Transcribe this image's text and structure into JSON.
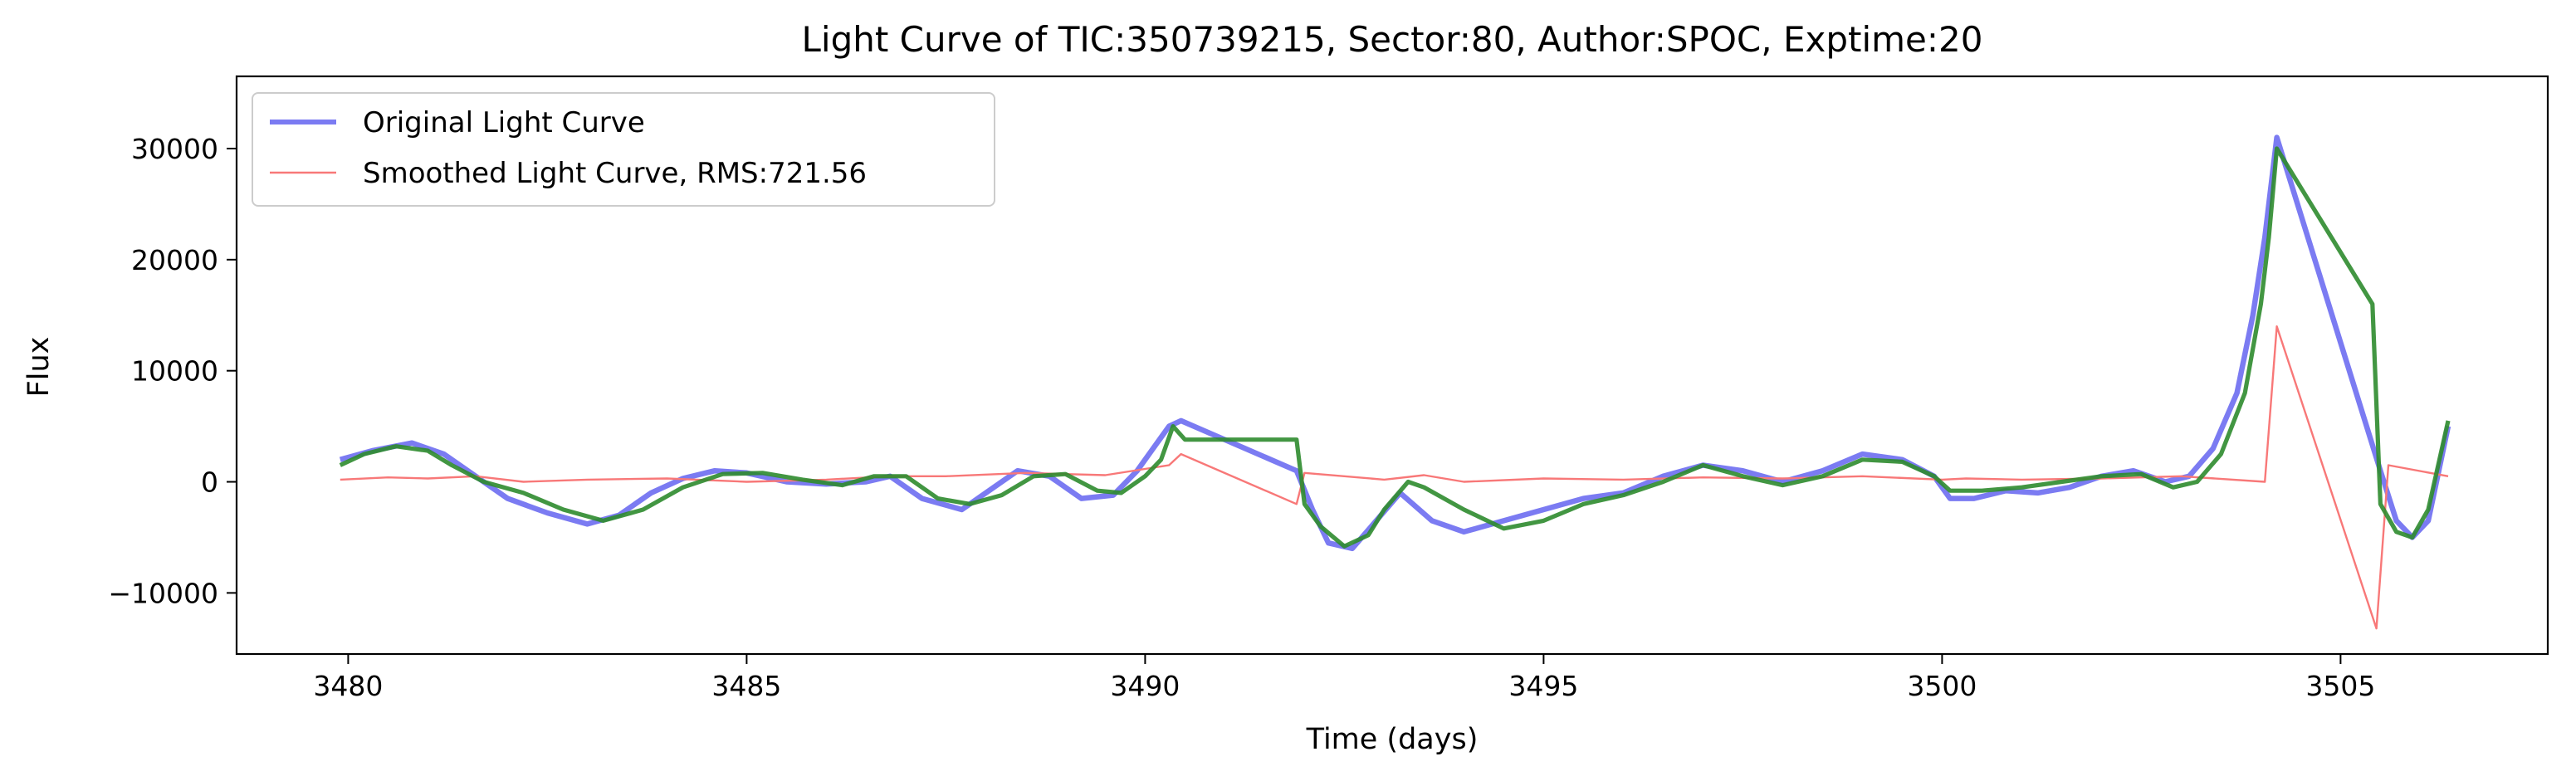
{
  "chart_data": {
    "type": "line",
    "title": "Light Curve of TIC:350739215, Sector:80, Author:SPOC, Exptime:20",
    "xlabel": "Time (days)",
    "ylabel": "Flux",
    "xlim": [
      3478.6,
      3507.6
    ],
    "ylim": [
      -15500,
      36500
    ],
    "x_ticks": [
      3480,
      3485,
      3490,
      3495,
      3500,
      3505
    ],
    "y_ticks": [
      -10000,
      0,
      10000,
      20000,
      30000
    ],
    "grid": false,
    "legend_position": "top-left",
    "series": [
      {
        "name": "Original Light Curve",
        "color": "#7b7bf2",
        "x": [
          3479.9,
          3480.3,
          3480.8,
          3481.2,
          3481.6,
          3482.0,
          3482.5,
          3483.0,
          3483.4,
          3483.8,
          3484.2,
          3484.6,
          3485.0,
          3485.5,
          3486.0,
          3486.5,
          3486.8,
          3487.2,
          3487.7,
          3488.0,
          3488.4,
          3488.8,
          3489.2,
          3489.6,
          3489.9,
          3490.1,
          3490.3,
          3490.45,
          3491.9,
          3492.1,
          3492.3,
          3492.6,
          3492.9,
          3493.2,
          3493.6,
          3494.0,
          3494.5,
          3495.0,
          3495.5,
          3496.0,
          3496.5,
          3497.0,
          3497.5,
          3498.0,
          3498.5,
          3499.0,
          3499.5,
          3499.9,
          3500.1,
          3500.4,
          3500.8,
          3501.2,
          3501.6,
          3502.0,
          3502.4,
          3502.8,
          3503.1,
          3503.4,
          3503.7,
          3503.9,
          3504.05,
          3504.2,
          3505.5,
          3505.7,
          3505.9,
          3506.1,
          3506.35
        ],
        "y": [
          2000,
          2800,
          3500,
          2500,
          500,
          -1500,
          -2800,
          -3800,
          -3000,
          -1000,
          300,
          1000,
          800,
          0,
          -200,
          0,
          500,
          -1500,
          -2500,
          -1000,
          1000,
          500,
          -1500,
          -1200,
          1000,
          3000,
          5000,
          5500,
          1000,
          -2500,
          -5500,
          -6000,
          -3500,
          -1000,
          -3500,
          -4500,
          -3500,
          -2500,
          -1500,
          -1000,
          500,
          1500,
          1000,
          0,
          1000,
          2500,
          2000,
          500,
          -1500,
          -1500,
          -800,
          -1000,
          -500,
          500,
          1000,
          0,
          500,
          3000,
          8000,
          15000,
          22000,
          31000,
          1000,
          -3500,
          -5000,
          -3500,
          5000
        ]
      },
      {
        "name": "Smoothed Light Curve, RMS:721.56",
        "color": "#f87878",
        "x": [
          3479.9,
          3480.5,
          3481.0,
          3481.6,
          3482.2,
          3483.0,
          3484.0,
          3485.0,
          3486.0,
          3486.8,
          3487.5,
          3488.5,
          3489.5,
          3490.3,
          3490.45,
          3491.9,
          3492.0,
          3493.0,
          3493.5,
          3494.0,
          3495.0,
          3496.0,
          3497.0,
          3498.0,
          3499.0,
          3500.0,
          3500.3,
          3501.0,
          3502.0,
          3503.0,
          3504.05,
          3504.2,
          3505.45,
          3505.6,
          3506.35
        ],
        "y": [
          200,
          400,
          300,
          500,
          0,
          200,
          300,
          0,
          200,
          500,
          500,
          800,
          600,
          1500,
          2500,
          -2000,
          800,
          200,
          600,
          0,
          300,
          200,
          400,
          300,
          500,
          200,
          300,
          200,
          300,
          500,
          0,
          14000,
          -13200,
          1500,
          500
        ]
      },
      {
        "name": "",
        "color": "#2e8b2e",
        "x": [
          3479.9,
          3480.2,
          3480.6,
          3481.0,
          3481.3,
          3481.7,
          3482.2,
          3482.7,
          3483.2,
          3483.7,
          3484.2,
          3484.7,
          3485.2,
          3485.7,
          3486.2,
          3486.6,
          3487.0,
          3487.4,
          3487.8,
          3488.2,
          3488.6,
          3489.0,
          3489.4,
          3489.7,
          3490.0,
          3490.2,
          3490.35,
          3490.5,
          3491.9,
          3492.0,
          3492.2,
          3492.5,
          3492.8,
          3493.0,
          3493.3,
          3493.5,
          3494.0,
          3494.5,
          3495.0,
          3495.5,
          3496.0,
          3496.5,
          3497.0,
          3497.5,
          3498.0,
          3498.5,
          3499.0,
          3499.5,
          3499.9,
          3500.1,
          3500.5,
          3501.0,
          3501.5,
          3502.0,
          3502.5,
          3502.9,
          3503.2,
          3503.5,
          3503.8,
          3504.0,
          3504.1,
          3504.2,
          3505.4,
          3505.5,
          3505.7,
          3505.9,
          3506.1,
          3506.35
        ],
        "y": [
          1500,
          2500,
          3200,
          2800,
          1500,
          0,
          -1000,
          -2500,
          -3500,
          -2500,
          -500,
          700,
          800,
          200,
          -300,
          500,
          500,
          -1500,
          -2000,
          -1200,
          500,
          700,
          -800,
          -1000,
          500,
          2000,
          5000,
          3800,
          3800,
          -2000,
          -4000,
          -5800,
          -4800,
          -2500,
          0,
          -500,
          -2500,
          -4200,
          -3500,
          -2000,
          -1200,
          0,
          1500,
          500,
          -300,
          500,
          2000,
          1800,
          500,
          -800,
          -800,
          -500,
          0,
          500,
          700,
          -500,
          0,
          2500,
          8000,
          16000,
          22000,
          30000,
          16000,
          -2000,
          -4500,
          -5000,
          -2500,
          5500
        ]
      }
    ],
    "legend": [
      {
        "label": "Original Light Curve",
        "color": "#7b7bf2"
      },
      {
        "label": "Smoothed Light Curve, RMS:721.56",
        "color": "#f87878"
      }
    ]
  }
}
